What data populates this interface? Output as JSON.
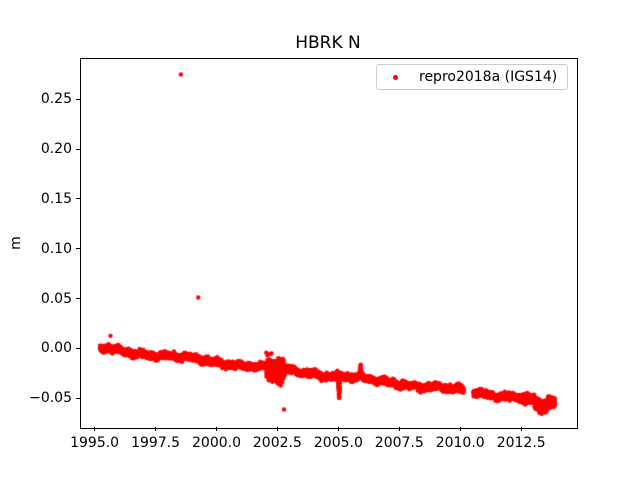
{
  "chart_data": {
    "type": "scatter",
    "title": "HBRK N",
    "ylabel": "m",
    "xlabel": "",
    "xlim": [
      1994.4,
      2014.75
    ],
    "ylim": [
      -0.079,
      0.2915
    ],
    "grid": false,
    "xticks": [
      1995.0,
      1997.5,
      2000.0,
      2002.5,
      2005.0,
      2007.5,
      2010.0,
      2012.5
    ],
    "xtick_labels": [
      "1995.0",
      "1997.5",
      "2000.0",
      "2002.5",
      "2005.0",
      "2007.5",
      "2010.0",
      "2012.5"
    ],
    "yticks": [
      -0.05,
      0.0,
      0.05,
      0.1,
      0.15,
      0.2,
      0.25
    ],
    "ytick_labels": [
      "−0.05",
      "0.00",
      "0.05",
      "0.10",
      "0.15",
      "0.20",
      "0.25"
    ],
    "legend": {
      "label": "repro2018a (IGS14)",
      "location": "upper right",
      "marker_color": "#ff0000",
      "border_color": "#cccccc"
    },
    "series": [
      {
        "name": "repro2018a (IGS14)",
        "color": "#ff0000",
        "marker": "point",
        "marker_radius_px": 2.2,
        "synthesis": {
          "seed": 42,
          "t_start": 1995.18,
          "t_end": 2013.85,
          "step_years": 0.0027397,
          "trend_start_value": 0.001,
          "slope_per_year": -0.002866,
          "wander_amplitude": 0.0022,
          "jitter_std": 0.0015,
          "gaps": [
            [
              2010.1,
              2010.5
            ]
          ],
          "features": [
            {
              "type": "spread",
              "from": 2002.0,
              "to": 2002.75,
              "mult": 4.0,
              "bias": -0.003
            },
            {
              "type": "spike",
              "from": 2004.94,
              "to": 2005.04,
              "depth": -0.023
            },
            {
              "type": "spike",
              "from": 2005.82,
              "to": 2005.92,
              "depth": 0.009
            },
            {
              "type": "spread",
              "from": 2013.0,
              "to": 2013.55,
              "mult": 1.3,
              "bias": -0.0035
            },
            {
              "type": "spread",
              "from": 2012.55,
              "to": 2013.85,
              "mult": 1.5,
              "bias": -0.0015
            }
          ]
        },
        "outliers": [
          [
            1995.61,
            0.0135
          ],
          [
            1998.5,
            0.276
          ],
          [
            1999.21,
            0.052
          ],
          [
            2002.73,
            -0.0605
          ]
        ]
      }
    ]
  }
}
